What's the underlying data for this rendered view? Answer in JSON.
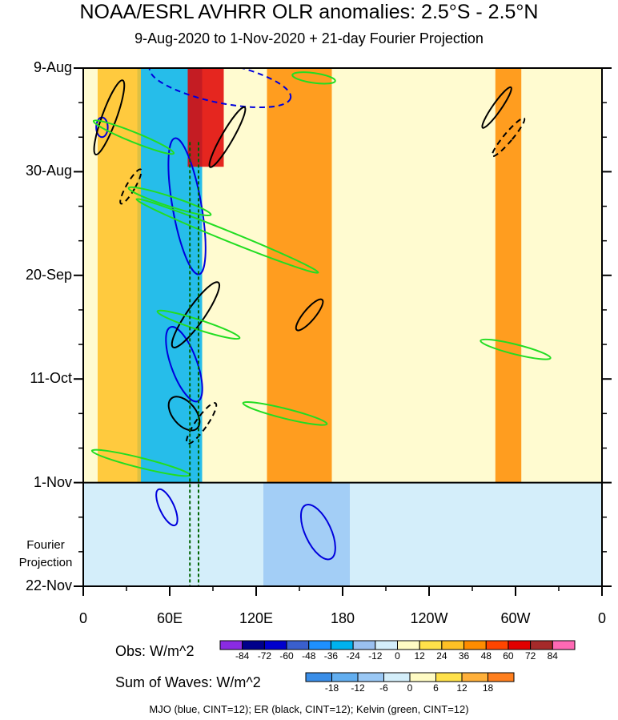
{
  "title": "NOAA/ESRL AVHRR OLR anomalies: 2.5°S - 2.5°N",
  "subtitle": "9-Aug-2020 to 1-Nov-2020 + 21-day Fourier Projection",
  "chart_data": {
    "type": "heatmap",
    "title": "NOAA/ESRL AVHRR OLR anomalies: 2.5°S - 2.5°N",
    "subtitle": "9-Aug-2020 to 1-Nov-2020 + 21-day Fourier Projection",
    "x_range_deg_east": [
      0,
      360
    ],
    "x_ticks": [
      {
        "label": "0",
        "lon": 0
      },
      {
        "label": "60E",
        "lon": 60
      },
      {
        "label": "120E",
        "lon": 120
      },
      {
        "label": "180",
        "lon": 180
      },
      {
        "label": "120W",
        "lon": 240
      },
      {
        "label": "60W",
        "lon": 300
      },
      {
        "label": "0",
        "lon": 360
      }
    ],
    "y_ticks": [
      {
        "label": "9-Aug",
        "day": 0
      },
      {
        "label": "30-Aug",
        "day": 21
      },
      {
        "label": "20-Sep",
        "day": 42
      },
      {
        "label": "11-Oct",
        "day": 63
      },
      {
        "label": "1-Nov",
        "day": 84
      },
      {
        "label": "22-Nov",
        "day": 105
      }
    ],
    "y_range_days": [
      0,
      105
    ],
    "projection_start_day": 84,
    "projection_label": "Fourier Projection",
    "obs_colorbar": {
      "title": "Obs: W/m^2",
      "levels": [
        "-84",
        "-72",
        "-60",
        "-48",
        "-36",
        "-24",
        "-12",
        "0",
        "12",
        "24",
        "36",
        "48",
        "60",
        "72",
        "84"
      ],
      "colors": [
        "#8a2be2",
        "#00008b",
        "#0000cd",
        "#3a5fcd",
        "#1e90ff",
        "#00b2ee",
        "#9ac0f0",
        "#d4eefa",
        "#fffbc4",
        "#ffe14a",
        "#ffc125",
        "#ff8c00",
        "#ff4500",
        "#e00000",
        "#a52a2a",
        "#ff69b4"
      ]
    },
    "waves_colorbar": {
      "title": "Sum of Waves: W/m^2",
      "levels": [
        "-18",
        "-12",
        "-6",
        "0",
        "6",
        "12",
        "18"
      ],
      "colors": [
        "#3a8ee8",
        "#62aef0",
        "#9ac8f5",
        "#d4eefa",
        "#fffbc4",
        "#ffe14a",
        "#ffb03a",
        "#ff7f1e"
      ]
    },
    "bands": [
      {
        "lon": 60,
        "width": 45,
        "day_start": 0,
        "day_end": 84,
        "anomaly": -30
      },
      {
        "lon": 85,
        "width": 25,
        "day_start": 0,
        "day_end": 20,
        "anomaly": 60
      },
      {
        "lon": 150,
        "width": 45,
        "day_start": 0,
        "day_end": 84,
        "anomaly": 36
      },
      {
        "lon": 295,
        "width": 18,
        "day_start": 0,
        "day_end": 84,
        "anomaly": 40
      },
      {
        "lon": 25,
        "width": 30,
        "day_start": 0,
        "day_end": 84,
        "anomaly": 24
      },
      {
        "lon": 155,
        "width": 60,
        "day_start": 84,
        "day_end": 105,
        "anomaly": -10
      }
    ],
    "series": [
      {
        "name": "MJO",
        "color": "#0000dd",
        "contours": [
          {
            "lon": 13,
            "day": 12,
            "rlon": 4,
            "rday": 2,
            "angle": 0,
            "dashed": false
          },
          {
            "lon": 72,
            "day": 28,
            "rlon": 10,
            "rday": 14,
            "angle": -10,
            "dashed": false
          },
          {
            "lon": 70,
            "day": 60,
            "rlon": 9,
            "rday": 8,
            "angle": -20,
            "dashed": false
          },
          {
            "lon": 58,
            "day": 89,
            "rlon": 5,
            "rday": 4,
            "angle": -25,
            "dashed": false
          },
          {
            "lon": 163,
            "day": 94,
            "rlon": 9,
            "rday": 6,
            "angle": -25,
            "dashed": false
          },
          {
            "lon": 95,
            "day": 3,
            "rlon": 50,
            "rday": 4,
            "angle": 12,
            "dashed": true
          }
        ]
      },
      {
        "name": "ER",
        "color": "#000000",
        "contours": [
          {
            "lon": 18,
            "day": 10,
            "rlon": 5,
            "rday": 8,
            "angle": 20,
            "dashed": false
          },
          {
            "lon": 100,
            "day": 14,
            "rlon": 4,
            "rday": 7,
            "angle": 30,
            "dashed": false
          },
          {
            "lon": 70,
            "day": 70,
            "rlon": 8,
            "rday": 4,
            "angle": -40,
            "dashed": false
          },
          {
            "lon": 78,
            "day": 50,
            "rlon": 6,
            "rday": 8,
            "angle": 35,
            "dashed": false
          },
          {
            "lon": 157,
            "day": 50,
            "rlon": 4,
            "rday": 4,
            "angle": 40,
            "dashed": false
          },
          {
            "lon": 287,
            "day": 8,
            "rlon": 3,
            "rday": 5,
            "angle": 35,
            "dashed": false
          },
          {
            "lon": 33,
            "day": 24,
            "rlon": 3,
            "rday": 4,
            "angle": 30,
            "dashed": true
          },
          {
            "lon": 295,
            "day": 14,
            "rlon": 3,
            "rday": 5,
            "angle": 40,
            "dashed": true
          },
          {
            "lon": 82,
            "day": 72,
            "rlon": 4,
            "rday": 5,
            "angle": 35,
            "dashed": true
          }
        ]
      },
      {
        "name": "Kelvin",
        "color": "#22dd22",
        "contours": [
          {
            "lon": 35,
            "day": 14,
            "rlon": 30,
            "rday": 1,
            "angle": 22,
            "dashed": false
          },
          {
            "lon": 100,
            "day": 34,
            "rlon": 68,
            "rday": 1,
            "angle": 22,
            "dashed": false
          },
          {
            "lon": 60,
            "day": 27,
            "rlon": 30,
            "rday": 1,
            "angle": 18,
            "dashed": false
          },
          {
            "lon": 80,
            "day": 52,
            "rlon": 30,
            "rday": 1,
            "angle": 18,
            "dashed": false
          },
          {
            "lon": 140,
            "day": 70,
            "rlon": 30,
            "rday": 1,
            "angle": 14,
            "dashed": false
          },
          {
            "lon": 40,
            "day": 80,
            "rlon": 35,
            "rday": 1,
            "angle": 14,
            "dashed": false
          },
          {
            "lon": 300,
            "day": 57,
            "rlon": 25,
            "rday": 1,
            "angle": 14,
            "dashed": false
          },
          {
            "lon": 160,
            "day": 2,
            "rlon": 15,
            "rday": 1,
            "angle": 8,
            "dashed": false
          }
        ]
      }
    ],
    "reference_lines_lon": [
      74,
      80
    ],
    "note": "MJO (blue, CINT=12); ER (black, CINT=12); Kelvin (green, CINT=12)"
  }
}
